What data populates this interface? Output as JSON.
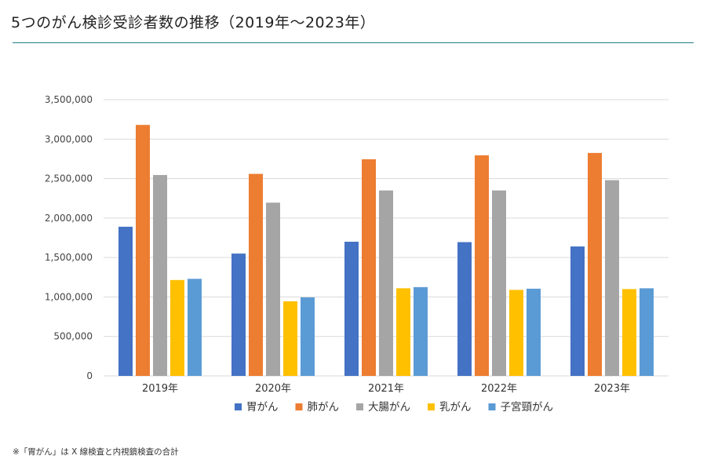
{
  "title": "5つのがん検診受診者数の推移（2019年〜2023年）",
  "footnote": "※「胃がん」は X 線検査と内視鏡検査の合計",
  "chart_data": {
    "type": "bar",
    "title": "5つのがん検診受診者数の推移（2019年〜2023年）",
    "xlabel": "",
    "ylabel": "",
    "categories": [
      "2019年",
      "2020年",
      "2021年",
      "2022年",
      "2023年"
    ],
    "ylim": [
      0,
      3500000
    ],
    "yticks": [
      0,
      500000,
      1000000,
      1500000,
      2000000,
      2500000,
      3000000,
      3500000
    ],
    "ytick_labels": [
      "0",
      "500,000",
      "1,000,000",
      "1,500,000",
      "2,000,000",
      "2,500,000",
      "3,000,000",
      "3,500,000"
    ],
    "grid": true,
    "legend_position": "bottom",
    "series": [
      {
        "name": "胃がん",
        "color": "#4472c4",
        "values": [
          1890000,
          1550000,
          1700000,
          1695000,
          1640000
        ]
      },
      {
        "name": "肺がん",
        "color": "#ed7d31",
        "values": [
          3180000,
          2560000,
          2745000,
          2795000,
          2825000
        ]
      },
      {
        "name": "大腸がん",
        "color": "#a5a5a5",
        "values": [
          2545000,
          2195000,
          2350000,
          2350000,
          2480000
        ]
      },
      {
        "name": "乳がん",
        "color": "#ffc000",
        "values": [
          1215000,
          945000,
          1110000,
          1090000,
          1100000
        ]
      },
      {
        "name": "子宮頸がん",
        "color": "#5b9bd5",
        "values": [
          1230000,
          995000,
          1125000,
          1105000,
          1110000
        ]
      }
    ]
  }
}
